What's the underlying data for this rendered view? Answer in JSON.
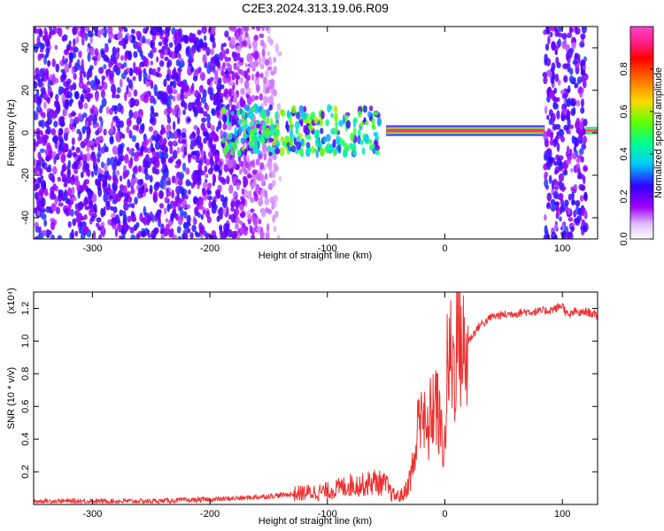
{
  "page_title": "C2E3.2024.313.19.06.R09",
  "chart_data": [
    {
      "type": "heatmap",
      "title": "C2E3.2024.313.19.06.R09",
      "xlabel": "Height of straight line (km)",
      "ylabel": "Frequency (Hz)",
      "xlim": [
        -350,
        130
      ],
      "ylim": [
        -50,
        50
      ],
      "x_ticks": [
        -300,
        -200,
        -100,
        0,
        100
      ],
      "y_ticks": [
        -40,
        -20,
        0,
        20,
        40
      ],
      "x_tick_labels": [
        "-300",
        "-200",
        "-100",
        "0",
        "100"
      ],
      "y_tick_labels": [
        "-40",
        "-20",
        "0",
        "20",
        "40"
      ],
      "colorbar": {
        "label": "Normalized spectral amplitude",
        "range": [
          0,
          1
        ],
        "ticks": [
          0.0,
          0.2,
          0.4,
          0.6,
          0.8
        ],
        "tick_labels": [
          "0.0",
          "0.2",
          "0.4",
          "0.6",
          "0.8"
        ],
        "colors": [
          "#ffffff",
          "#a000ff",
          "#3000ff",
          "#00c8ff",
          "#00ff90",
          "#60ff00",
          "#ffd800",
          "#ff7000",
          "#ff0000",
          "#ff2090",
          "#ff40c8"
        ]
      },
      "regions": [
        {
          "name": "diffuse-noise",
          "x_range": [
            -350,
            -140
          ],
          "f_range": [
            -50,
            50
          ],
          "level": 0.15
        },
        {
          "name": "turbulent-band",
          "x_range": [
            -190,
            -55
          ],
          "f_range": [
            -10,
            12
          ],
          "level": 0.35
        },
        {
          "name": "narrow-line",
          "x_range": [
            -50,
            85
          ],
          "f_center": 1,
          "level": 0.95
        },
        {
          "name": "outer-noise",
          "x_range": [
            85,
            120
          ],
          "f_range": [
            -50,
            50
          ],
          "level": 0.15
        }
      ]
    },
    {
      "type": "line",
      "xlabel": "Height of straight line (km)",
      "ylabel": "SNR (10 * v/v)",
      "y_multiplier": "(x10⁴)",
      "xlim": [
        -350,
        130
      ],
      "ylim": [
        0,
        1.3
      ],
      "x_ticks": [
        -300,
        -200,
        -100,
        0,
        100
      ],
      "y_ticks": [
        0.2,
        0.4,
        0.6,
        0.8,
        1.0,
        1.2
      ],
      "x_tick_labels": [
        "-300",
        "-200",
        "-100",
        "0",
        "100"
      ],
      "y_tick_labels": [
        "0.2",
        "0.4",
        "0.6",
        "0.8",
        "1.0",
        "1.2"
      ],
      "series": [
        {
          "color": "#ee3030",
          "x": [
            -350,
            -300,
            -250,
            -200,
            -170,
            -150,
            -120,
            -100,
            -90,
            -80,
            -70,
            -60,
            -50,
            -45,
            -40,
            -35,
            -30,
            -25,
            -22,
            -20,
            -18,
            -15,
            -12,
            -10,
            -8,
            -5,
            -2,
            0,
            2,
            5,
            8,
            10,
            12,
            15,
            18,
            20,
            25,
            30,
            35,
            40,
            50,
            60,
            70,
            80,
            90,
            95,
            100,
            105,
            110,
            115,
            120,
            125,
            130
          ],
          "values": [
            0.02,
            0.02,
            0.02,
            0.03,
            0.04,
            0.05,
            0.07,
            0.08,
            0.1,
            0.12,
            0.12,
            0.14,
            0.12,
            0.06,
            0.05,
            0.06,
            0.15,
            0.3,
            0.55,
            0.7,
            0.5,
            0.4,
            0.55,
            0.6,
            0.65,
            0.5,
            0.4,
            0.35,
            0.8,
            0.9,
            0.85,
            1.0,
            1.12,
            0.95,
            0.85,
            1.0,
            1.05,
            1.1,
            1.12,
            1.15,
            1.16,
            1.17,
            1.18,
            1.18,
            1.19,
            1.2,
            1.22,
            1.15,
            1.18,
            1.17,
            1.18,
            1.17,
            1.15
          ]
        }
      ]
    }
  ]
}
